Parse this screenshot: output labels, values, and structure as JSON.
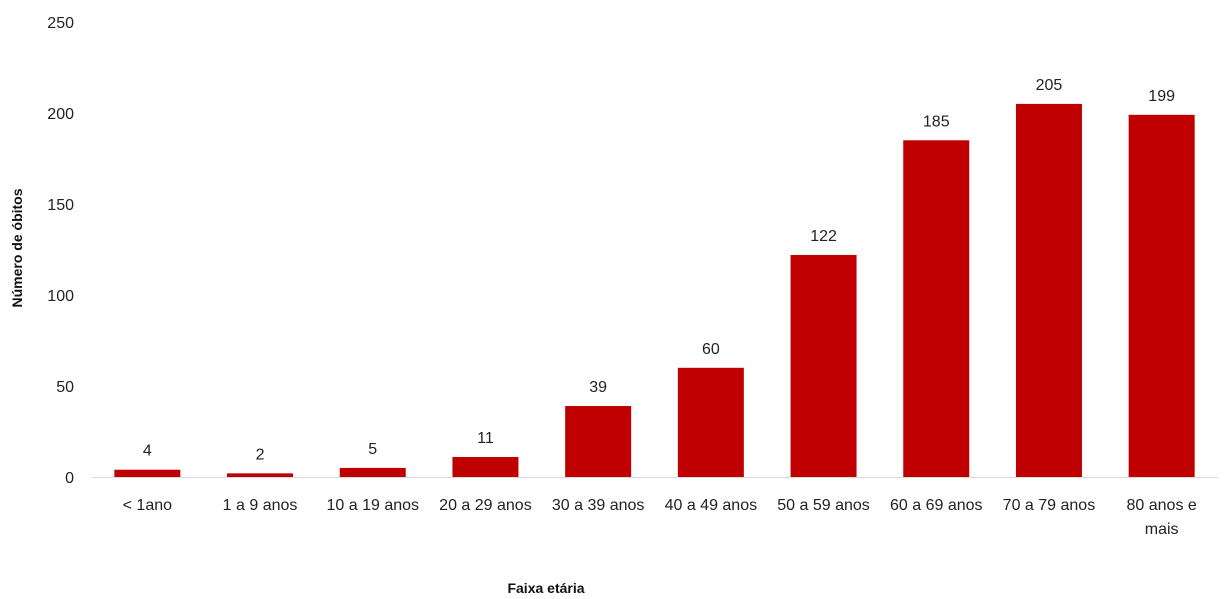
{
  "chart_data": {
    "type": "bar",
    "title": "",
    "xlabel": "Faixa etária",
    "ylabel": "Número de óbitos",
    "ylim": [
      0,
      250
    ],
    "yticks": [
      0,
      50,
      100,
      150,
      200,
      250
    ],
    "grid": false,
    "legend": "none",
    "bar_color": "#C00000",
    "categories": [
      [
        "< 1ano"
      ],
      [
        "1 a 9 anos"
      ],
      [
        "10 a 19 anos"
      ],
      [
        "20 a 29 anos"
      ],
      [
        "30 a 39 anos"
      ],
      [
        "40 a 49 anos"
      ],
      [
        "50 a 59 anos"
      ],
      [
        "60 a 69 anos"
      ],
      [
        "70 a 79 anos"
      ],
      [
        "80 anos e",
        "mais"
      ]
    ],
    "values": [
      4,
      2,
      5,
      11,
      39,
      60,
      122,
      185,
      205,
      199
    ]
  }
}
